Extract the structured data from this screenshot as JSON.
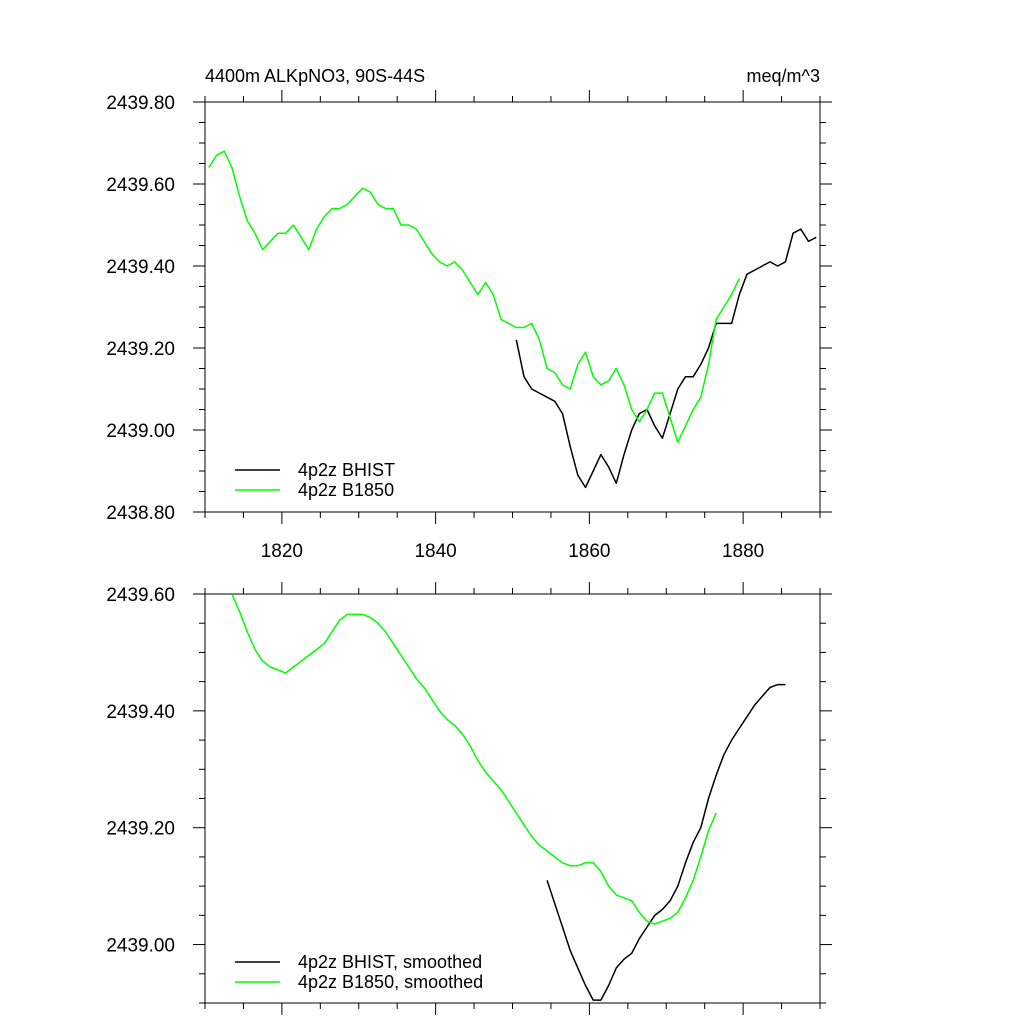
{
  "chart_data": [
    {
      "type": "line",
      "title": "4400m ALKpNO3, 90S-44S",
      "units": "meq/m^3",
      "xlim": [
        1810,
        1890
      ],
      "ylim": [
        2438.8,
        2439.8
      ],
      "xticks": [
        1820,
        1840,
        1860,
        1880
      ],
      "xtick_labels": [
        "1820",
        "1840",
        "1860",
        "1880"
      ],
      "yticks": [
        2438.8,
        2439.0,
        2439.2,
        2439.4,
        2439.6,
        2439.8
      ],
      "ytick_labels": [
        "2438.80",
        "2439.00",
        "2439.20",
        "2439.40",
        "2439.60",
        "2439.80"
      ],
      "legend_position": "bottom-left",
      "series": [
        {
          "name": "4p2z BHIST",
          "color": "#000000",
          "x": [
            1850.5,
            1851.5,
            1852.5,
            1853.5,
            1854.5,
            1855.5,
            1856.5,
            1857.5,
            1858.5,
            1859.5,
            1860.5,
            1861.5,
            1862.5,
            1863.5,
            1864.5,
            1865.5,
            1866.5,
            1867.5,
            1868.5,
            1869.5,
            1870.5,
            1871.5,
            1872.5,
            1873.5,
            1874.5,
            1875.5,
            1876.5,
            1877.5,
            1878.5,
            1879.5,
            1880.5,
            1881.5,
            1882.5,
            1883.5,
            1884.5,
            1885.5,
            1886.5,
            1887.5,
            1888.5,
            1889.5
          ],
          "values": [
            2439.22,
            2439.13,
            2439.1,
            2439.09,
            2439.08,
            2439.07,
            2439.04,
            2438.96,
            2438.89,
            2438.86,
            2438.9,
            2438.94,
            2438.91,
            2438.87,
            2438.94,
            2439.0,
            2439.04,
            2439.05,
            2439.01,
            2438.98,
            2439.04,
            2439.1,
            2439.13,
            2439.13,
            2439.16,
            2439.2,
            2439.26,
            2439.26,
            2439.26,
            2439.33,
            2439.38,
            2439.39,
            2439.4,
            2439.41,
            2439.4,
            2439.41,
            2439.48,
            2439.49,
            2439.46,
            2439.47
          ]
        },
        {
          "name": "4p2z B1850",
          "color": "#00ff00",
          "x": [
            1810.5,
            1811.5,
            1812.5,
            1813.5,
            1814.5,
            1815.5,
            1816.5,
            1817.5,
            1818.5,
            1819.5,
            1820.5,
            1821.5,
            1822.5,
            1823.5,
            1824.5,
            1825.5,
            1826.5,
            1827.5,
            1828.5,
            1829.5,
            1830.5,
            1831.5,
            1832.5,
            1833.5,
            1834.5,
            1835.5,
            1836.5,
            1837.5,
            1838.5,
            1839.5,
            1840.5,
            1841.5,
            1842.5,
            1843.5,
            1844.5,
            1845.5,
            1846.5,
            1847.5,
            1848.5,
            1849.5,
            1850.5,
            1851.5,
            1852.5,
            1853.5,
            1854.5,
            1855.5,
            1856.5,
            1857.5,
            1858.5,
            1859.5,
            1860.5,
            1861.5,
            1862.5,
            1863.5,
            1864.5,
            1865.5,
            1866.5,
            1867.5,
            1868.5,
            1869.5,
            1870.5,
            1871.5,
            1872.5,
            1873.5,
            1874.5,
            1875.5,
            1876.5,
            1877.5,
            1878.5,
            1879.5
          ],
          "values": [
            2439.64,
            2439.67,
            2439.68,
            2439.64,
            2439.57,
            2439.51,
            2439.48,
            2439.44,
            2439.46,
            2439.48,
            2439.48,
            2439.5,
            2439.47,
            2439.44,
            2439.49,
            2439.52,
            2439.54,
            2439.54,
            2439.55,
            2439.57,
            2439.59,
            2439.58,
            2439.55,
            2439.54,
            2439.54,
            2439.5,
            2439.5,
            2439.49,
            2439.46,
            2439.43,
            2439.41,
            2439.4,
            2439.41,
            2439.39,
            2439.36,
            2439.33,
            2439.36,
            2439.33,
            2439.27,
            2439.26,
            2439.25,
            2439.25,
            2439.26,
            2439.22,
            2439.15,
            2439.14,
            2439.11,
            2439.1,
            2439.16,
            2439.19,
            2439.13,
            2439.11,
            2439.12,
            2439.15,
            2439.11,
            2439.05,
            2439.02,
            2439.05,
            2439.09,
            2439.09,
            2439.03,
            2438.97,
            2439.01,
            2439.05,
            2439.08,
            2439.16,
            2439.27,
            2439.3,
            2439.33,
            2439.37
          ]
        }
      ]
    },
    {
      "type": "line",
      "xlim": [
        1810,
        1890
      ],
      "ylim": [
        2438.9,
        2439.6
      ],
      "xticks": [
        1820,
        1840,
        1860,
        1880
      ],
      "yticks": [
        2439.0,
        2439.2,
        2439.4,
        2439.6
      ],
      "ytick_labels": [
        "2439.00",
        "2439.20",
        "2439.40",
        "2439.60"
      ],
      "legend_position": "bottom-left",
      "series": [
        {
          "name": "4p2z BHIST, smoothed",
          "color": "#000000",
          "x": [
            1854.5,
            1855.5,
            1856.5,
            1857.5,
            1858.5,
            1859.5,
            1860.5,
            1861.5,
            1862.5,
            1863.5,
            1864.5,
            1865.5,
            1866.5,
            1867.5,
            1868.5,
            1869.5,
            1870.5,
            1871.5,
            1872.5,
            1873.5,
            1874.5,
            1875.5,
            1876.5,
            1877.5,
            1878.5,
            1879.5,
            1880.5,
            1881.5,
            1882.5,
            1883.5,
            1884.5,
            1885.5
          ],
          "values": [
            2439.11,
            2439.07,
            2439.03,
            2438.99,
            2438.96,
            2438.93,
            2438.905,
            2438.905,
            2438.93,
            2438.96,
            2438.975,
            2438.985,
            2439.01,
            2439.03,
            2439.05,
            2439.06,
            2439.075,
            2439.1,
            2439.14,
            2439.175,
            2439.2,
            2439.25,
            2439.29,
            2439.325,
            2439.35,
            2439.37,
            2439.39,
            2439.41,
            2439.425,
            2439.44,
            2439.445,
            2439.445
          ]
        },
        {
          "name": "4p2z B1850, smoothed",
          "color": "#00ff00",
          "x": [
            1813.5,
            1814.5,
            1815.5,
            1816.5,
            1817.5,
            1818.5,
            1819.5,
            1820.5,
            1821.5,
            1822.5,
            1823.5,
            1824.5,
            1825.5,
            1826.5,
            1827.5,
            1828.5,
            1829.5,
            1830.5,
            1831.5,
            1832.5,
            1833.5,
            1834.5,
            1835.5,
            1836.5,
            1837.5,
            1838.5,
            1839.5,
            1840.5,
            1841.5,
            1842.5,
            1843.5,
            1844.5,
            1845.5,
            1846.5,
            1847.5,
            1848.5,
            1849.5,
            1850.5,
            1851.5,
            1852.5,
            1853.5,
            1854.5,
            1855.5,
            1856.5,
            1857.5,
            1858.5,
            1859.5,
            1860.5,
            1861.5,
            1862.5,
            1863.5,
            1864.5,
            1865.5,
            1866.5,
            1867.5,
            1868.5,
            1869.5,
            1870.5,
            1871.5,
            1872.5,
            1873.5,
            1874.5,
            1875.5,
            1876.5
          ],
          "values": [
            2439.6,
            2439.57,
            2439.535,
            2439.505,
            2439.485,
            2439.475,
            2439.47,
            2439.465,
            2439.475,
            2439.485,
            2439.495,
            2439.505,
            2439.515,
            2439.535,
            2439.555,
            2439.565,
            2439.565,
            2439.565,
            2439.56,
            2439.55,
            2439.535,
            2439.515,
            2439.495,
            2439.475,
            2439.455,
            2439.44,
            2439.42,
            2439.4,
            2439.385,
            2439.375,
            2439.36,
            2439.34,
            2439.315,
            2439.295,
            2439.28,
            2439.265,
            2439.245,
            2439.225,
            2439.205,
            2439.185,
            2439.17,
            2439.16,
            2439.15,
            2439.14,
            2439.135,
            2439.135,
            2439.14,
            2439.14,
            2439.125,
            2439.1,
            2439.085,
            2439.08,
            2439.075,
            2439.055,
            2439.04,
            2439.035,
            2439.04,
            2439.045,
            2439.055,
            2439.08,
            2439.11,
            2439.15,
            2439.195,
            2439.225
          ]
        }
      ]
    }
  ]
}
